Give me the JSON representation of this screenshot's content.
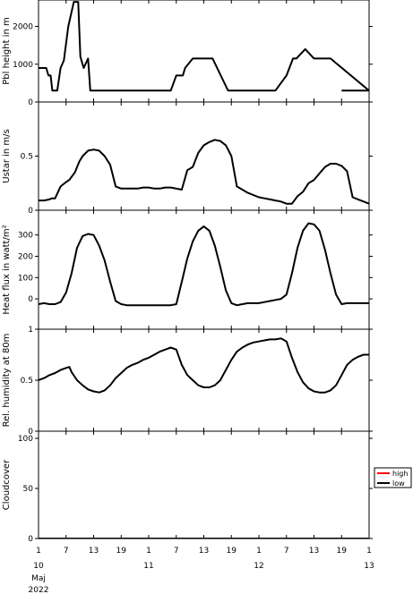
{
  "chart_data": {
    "type": "line",
    "x_ticks": [
      {
        "label": "1",
        "day": 0
      },
      {
        "label": "7",
        "day": 0.25
      },
      {
        "label": "13",
        "day": 0.5
      },
      {
        "label": "19",
        "day": 0.75
      },
      {
        "label": "1",
        "day": 1
      },
      {
        "label": "7",
        "day": 1.25
      },
      {
        "label": "13",
        "day": 1.5
      },
      {
        "label": "19",
        "day": 1.75
      },
      {
        "label": "1",
        "day": 2
      },
      {
        "label": "7",
        "day": 2.25
      },
      {
        "label": "13",
        "day": 2.5
      },
      {
        "label": "19",
        "day": 2.75
      },
      {
        "label": "1",
        "day": 3
      }
    ],
    "date_labels": [
      {
        "text": "10",
        "day": 0
      },
      {
        "text": "11",
        "day": 1
      },
      {
        "text": "12",
        "day": 2
      },
      {
        "text": "13",
        "day": 3
      }
    ],
    "month_label": "Maj",
    "year_label": "2022",
    "x_range": [
      0,
      3
    ],
    "panels": [
      {
        "ylabel": "Pbl height in m",
        "ylim": [
          0,
          2700
        ],
        "yticks": [
          0,
          1000,
          2000
        ],
        "series": [
          {
            "color": "#000000",
            "x": [
              0,
              0.07,
              0.09,
              0.11,
              0.125,
              0.17,
              0.2,
              0.23,
              0.27,
              0.32,
              0.36,
              0.38,
              0.41,
              0.45,
              0.47,
              0.5,
              0.52,
              0.55,
              0.58,
              1.0,
              1.08,
              1.12,
              1.17,
              1.2,
              1.25,
              1.31,
              1.33,
              1.4,
              1.5,
              1.58,
              1.72,
              1.78,
              2.08,
              2.15,
              2.25,
              2.27,
              2.31,
              2.34,
              2.42,
              2.5,
              2.53,
              2.55,
              2.58,
              2.65,
              3.0
            ],
            "values": [
              900,
              900,
              700,
              700,
              300,
              300,
              900,
              1100,
              2000,
              2650,
              2650,
              1200,
              900,
              1150,
              300,
              300,
              300,
              300,
              300,
              300,
              300,
              300,
              300,
              300,
              700,
              700,
              900,
              1150,
              1150,
              1150,
              300,
              300,
              300,
              300,
              700,
              850,
              1150,
              1150,
              1400,
              1150,
              1150,
              1150,
              1150,
              1150,
              300
            ]
          },
          {
            "color": "#000000",
            "x": [
              2.75,
              2.82,
              3.0
            ],
            "values": [
              300,
              300,
              300
            ]
          }
        ]
      },
      {
        "ylabel": "Ustar in m/s",
        "ylim": [
          0,
          1.0
        ],
        "yticks": [
          0,
          0.5
        ],
        "series": [
          {
            "color": "#000000",
            "x": [
              0,
              0.05,
              0.1,
              0.12,
              0.15,
              0.2,
              0.25,
              0.28,
              0.33,
              0.37,
              0.4,
              0.45,
              0.5,
              0.55,
              0.6,
              0.65,
              0.7,
              0.75,
              0.8,
              0.85,
              0.9,
              0.95,
              1.0,
              1.05,
              1.1,
              1.15,
              1.2,
              1.3,
              1.35,
              1.4,
              1.45,
              1.5,
              1.55,
              1.6,
              1.65,
              1.7,
              1.75,
              1.8,
              1.9,
              2.0,
              2.05,
              2.1,
              2.15,
              2.2,
              2.25,
              2.3,
              2.35,
              2.4,
              2.45,
              2.5,
              2.55,
              2.6,
              2.65,
              2.7,
              2.75,
              2.8,
              2.85,
              2.9,
              2.95,
              3.0
            ],
            "values": [
              0.09,
              0.09,
              0.1,
              0.11,
              0.11,
              0.22,
              0.26,
              0.28,
              0.35,
              0.45,
              0.5,
              0.55,
              0.56,
              0.55,
              0.5,
              0.42,
              0.22,
              0.2,
              0.2,
              0.2,
              0.2,
              0.21,
              0.21,
              0.2,
              0.2,
              0.21,
              0.21,
              0.19,
              0.37,
              0.4,
              0.53,
              0.6,
              0.63,
              0.65,
              0.64,
              0.6,
              0.5,
              0.22,
              0.16,
              0.12,
              0.11,
              0.1,
              0.09,
              0.08,
              0.06,
              0.06,
              0.13,
              0.17,
              0.25,
              0.28,
              0.34,
              0.4,
              0.43,
              0.43,
              0.41,
              0.36,
              0.12,
              0.1,
              0.08,
              0.06
            ]
          }
        ]
      },
      {
        "ylabel": "Heat flux in watt/m²",
        "ylim": [
          -50,
          370
        ],
        "yticks": [
          0,
          100,
          200,
          300
        ],
        "series": [
          {
            "color": "#000000",
            "x": [
              0,
              0.05,
              0.1,
              0.15,
              0.2,
              0.25,
              0.3,
              0.35,
              0.4,
              0.45,
              0.5,
              0.55,
              0.6,
              0.65,
              0.7,
              0.75,
              0.8,
              0.85,
              0.9,
              0.95,
              1.0,
              1.05,
              1.1,
              1.15,
              1.2,
              1.25,
              1.3,
              1.35,
              1.4,
              1.45,
              1.5,
              1.55,
              1.6,
              1.65,
              1.7,
              1.75,
              1.8,
              1.85,
              1.9,
              1.95,
              2.0,
              2.05,
              2.1,
              2.15,
              2.2,
              2.25,
              2.3,
              2.35,
              2.4,
              2.45,
              2.5,
              2.55,
              2.6,
              2.65,
              2.7,
              2.75,
              2.8,
              2.85,
              2.9,
              2.95,
              3.0
            ],
            "values": [
              -25,
              -20,
              -25,
              -25,
              -15,
              30,
              120,
              240,
              295,
              305,
              300,
              250,
              180,
              80,
              -10,
              -25,
              -30,
              -30,
              -30,
              -30,
              -30,
              -30,
              -30,
              -30,
              -30,
              -25,
              80,
              190,
              270,
              320,
              340,
              320,
              250,
              150,
              40,
              -20,
              -30,
              -25,
              -20,
              -20,
              -20,
              -15,
              -10,
              -5,
              0,
              20,
              120,
              240,
              320,
              355,
              350,
              320,
              230,
              120,
              20,
              -25,
              -20,
              -20,
              -20,
              -20,
              -20
            ]
          }
        ]
      },
      {
        "ylabel": "Rel. humidity at 80m",
        "ylim": [
          0,
          1.0
        ],
        "yticks": [
          0,
          0.5,
          1.0
        ],
        "series": [
          {
            "color": "#000000",
            "x": [
              0,
              0.05,
              0.1,
              0.15,
              0.2,
              0.25,
              0.28,
              0.3,
              0.35,
              0.4,
              0.45,
              0.5,
              0.55,
              0.6,
              0.65,
              0.7,
              0.75,
              0.8,
              0.85,
              0.9,
              0.95,
              1.0,
              1.05,
              1.1,
              1.15,
              1.2,
              1.25,
              1.3,
              1.35,
              1.4,
              1.45,
              1.5,
              1.55,
              1.6,
              1.65,
              1.7,
              1.75,
              1.8,
              1.85,
              1.9,
              1.95,
              2.0,
              2.05,
              2.1,
              2.15,
              2.2,
              2.25,
              2.3,
              2.35,
              2.4,
              2.45,
              2.5,
              2.55,
              2.6,
              2.65,
              2.7,
              2.75,
              2.8,
              2.85,
              2.9,
              2.95,
              3.0
            ],
            "values": [
              0.5,
              0.52,
              0.55,
              0.57,
              0.6,
              0.62,
              0.63,
              0.58,
              0.5,
              0.45,
              0.41,
              0.39,
              0.38,
              0.4,
              0.45,
              0.52,
              0.57,
              0.62,
              0.65,
              0.67,
              0.7,
              0.72,
              0.75,
              0.78,
              0.8,
              0.82,
              0.8,
              0.65,
              0.55,
              0.5,
              0.45,
              0.43,
              0.43,
              0.45,
              0.5,
              0.6,
              0.7,
              0.78,
              0.82,
              0.85,
              0.87,
              0.88,
              0.89,
              0.9,
              0.9,
              0.91,
              0.88,
              0.72,
              0.58,
              0.48,
              0.42,
              0.39,
              0.38,
              0.38,
              0.4,
              0.45,
              0.55,
              0.65,
              0.7,
              0.73,
              0.75,
              0.75
            ]
          }
        ]
      },
      {
        "ylabel": "Cloudcover",
        "ylim": [
          0,
          100
        ],
        "yticks": [
          0,
          50,
          100
        ],
        "series": [
          {
            "name": "high",
            "color": "#ff0000",
            "x": [
              0,
              3
            ],
            "values": [
              0,
              0
            ]
          },
          {
            "name": "low",
            "color": "#000000",
            "x": [
              0,
              3
            ],
            "values": [
              0,
              0
            ]
          }
        ],
        "legend": [
          {
            "name": "high",
            "color": "#ff0000"
          },
          {
            "name": "low",
            "color": "#000000"
          }
        ]
      }
    ]
  }
}
